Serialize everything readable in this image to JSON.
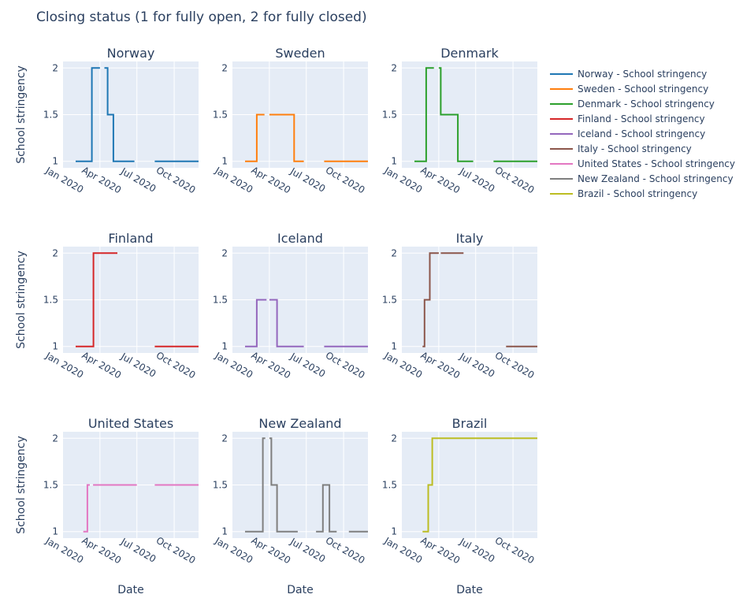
{
  "chart_data": {
    "type": "line",
    "line_shape": "step",
    "title": "Closing status (1 for fully open, 2 for fully closed)",
    "xlabel": "Date",
    "ylabel": "School stringency",
    "xlim": [
      "2020-01-01",
      "2020-11-30"
    ],
    "ylim": [
      0.93,
      2.07
    ],
    "x_ticks": [
      {
        "date": "2020-01-01",
        "label": "Jan 2020"
      },
      {
        "date": "2020-04-01",
        "label": "Apr 2020"
      },
      {
        "date": "2020-07-01",
        "label": "Jul 2020"
      },
      {
        "date": "2020-10-01",
        "label": "Oct 2020"
      }
    ],
    "y_ticks": [
      {
        "value": 1,
        "label": "1"
      },
      {
        "value": 1.5,
        "label": "1.5"
      },
      {
        "value": 2,
        "label": "2"
      }
    ],
    "grid": true,
    "legend_position": "right",
    "plot_background": "#e5ecf6",
    "grid_color": "#ffffff",
    "text_color": "#2a3f5f",
    "series": [
      {
        "country": "Norway",
        "name": "Norway - School stringency",
        "color": "#1f77b4",
        "segments": [
          [
            [
              "2020-02-01",
              1
            ],
            [
              "2020-03-12",
              1
            ],
            [
              "2020-03-12",
              2
            ],
            [
              "2020-04-01",
              2
            ]
          ],
          [
            [
              "2020-04-12",
              2
            ],
            [
              "2020-04-20",
              2
            ],
            [
              "2020-04-20",
              1.5
            ],
            [
              "2020-05-04",
              1.5
            ],
            [
              "2020-05-04",
              1
            ],
            [
              "2020-06-25",
              1
            ]
          ],
          [
            [
              "2020-08-14",
              1
            ],
            [
              "2020-11-30",
              1
            ]
          ]
        ]
      },
      {
        "country": "Sweden",
        "name": "Sweden - School stringency",
        "color": "#ff7f0e",
        "segments": [
          [
            [
              "2020-02-01",
              1
            ],
            [
              "2020-03-01",
              1
            ],
            [
              "2020-03-01",
              1.5
            ],
            [
              "2020-03-20",
              1.5
            ]
          ],
          [
            [
              "2020-04-01",
              1.5
            ],
            [
              "2020-06-01",
              1.5
            ],
            [
              "2020-06-01",
              1
            ],
            [
              "2020-06-25",
              1
            ]
          ],
          [
            [
              "2020-08-14",
              1
            ],
            [
              "2020-11-30",
              1
            ]
          ]
        ]
      },
      {
        "country": "Denmark",
        "name": "Denmark - School stringency",
        "color": "#2ca02c",
        "segments": [
          [
            [
              "2020-02-01",
              1
            ],
            [
              "2020-03-01",
              1
            ],
            [
              "2020-03-01",
              2
            ],
            [
              "2020-03-20",
              2
            ]
          ],
          [
            [
              "2020-04-01",
              2
            ],
            [
              "2020-04-06",
              2
            ],
            [
              "2020-04-06",
              1.5
            ],
            [
              "2020-05-18",
              1.5
            ],
            [
              "2020-05-18",
              1
            ],
            [
              "2020-06-25",
              1
            ]
          ],
          [
            [
              "2020-08-14",
              1
            ],
            [
              "2020-11-30",
              1
            ]
          ]
        ]
      },
      {
        "country": "Finland",
        "name": "Finland - School stringency",
        "color": "#d62728",
        "segments": [
          [
            [
              "2020-02-01",
              1
            ],
            [
              "2020-03-16",
              1
            ],
            [
              "2020-03-16",
              2
            ],
            [
              "2020-05-14",
              2
            ]
          ],
          [
            [
              "2020-08-14",
              1
            ],
            [
              "2020-11-30",
              1
            ]
          ]
        ]
      },
      {
        "country": "Iceland",
        "name": "Iceland - School stringency",
        "color": "#9467bd",
        "segments": [
          [
            [
              "2020-02-01",
              1
            ],
            [
              "2020-03-01",
              1
            ],
            [
              "2020-03-01",
              1.5
            ],
            [
              "2020-03-25",
              1.5
            ]
          ],
          [
            [
              "2020-04-01",
              1.5
            ],
            [
              "2020-04-20",
              1.5
            ],
            [
              "2020-04-20",
              1
            ],
            [
              "2020-06-25",
              1
            ]
          ],
          [
            [
              "2020-08-14",
              1
            ],
            [
              "2020-11-30",
              1
            ]
          ]
        ]
      },
      {
        "country": "Italy",
        "name": "Italy - School stringency",
        "color": "#8c564b",
        "segments": [
          [
            [
              "2020-02-21",
              1
            ],
            [
              "2020-02-26",
              1
            ],
            [
              "2020-02-26",
              1.5
            ],
            [
              "2020-03-10",
              1.5
            ],
            [
              "2020-03-10",
              2
            ],
            [
              "2020-04-01",
              2
            ]
          ],
          [
            [
              "2020-04-06",
              2
            ],
            [
              "2020-06-01",
              2
            ]
          ],
          [
            [
              "2020-09-14",
              1
            ],
            [
              "2020-11-30",
              1
            ]
          ]
        ]
      },
      {
        "country": "United States",
        "name": "United States - School stringency",
        "color": "#e377c2",
        "segments": [
          [
            [
              "2020-02-20",
              1
            ],
            [
              "2020-03-01",
              1
            ],
            [
              "2020-03-01",
              1.5
            ],
            [
              "2020-03-07",
              1.5
            ]
          ],
          [
            [
              "2020-03-15",
              1.5
            ],
            [
              "2020-07-01",
              1.5
            ]
          ],
          [
            [
              "2020-08-14",
              1.5
            ],
            [
              "2020-11-30",
              1.5
            ]
          ]
        ]
      },
      {
        "country": "New Zealand",
        "name": "New Zealand - School stringency",
        "color": "#7f7f7f",
        "segments": [
          [
            [
              "2020-02-01",
              1
            ],
            [
              "2020-03-16",
              1
            ],
            [
              "2020-03-16",
              2
            ],
            [
              "2020-03-22",
              2
            ]
          ],
          [
            [
              "2020-04-01",
              2
            ],
            [
              "2020-04-06",
              2
            ],
            [
              "2020-04-06",
              1.5
            ],
            [
              "2020-04-20",
              1.5
            ],
            [
              "2020-04-20",
              1
            ],
            [
              "2020-06-10",
              1
            ]
          ],
          [
            [
              "2020-07-25",
              1
            ],
            [
              "2020-08-11",
              1
            ],
            [
              "2020-08-11",
              1.5
            ],
            [
              "2020-08-27",
              1.5
            ],
            [
              "2020-08-27",
              1
            ],
            [
              "2020-09-14",
              1
            ]
          ],
          [
            [
              "2020-10-14",
              1
            ],
            [
              "2020-11-30",
              1
            ]
          ]
        ]
      },
      {
        "country": "Brazil",
        "name": "Brazil - School stringency",
        "color": "#bcbd22",
        "segments": [
          [
            [
              "2020-02-21",
              1
            ],
            [
              "2020-03-06",
              1
            ],
            [
              "2020-03-06",
              1.5
            ],
            [
              "2020-03-16",
              1.5
            ],
            [
              "2020-03-16",
              2
            ],
            [
              "2020-11-30",
              2
            ]
          ]
        ]
      }
    ]
  }
}
